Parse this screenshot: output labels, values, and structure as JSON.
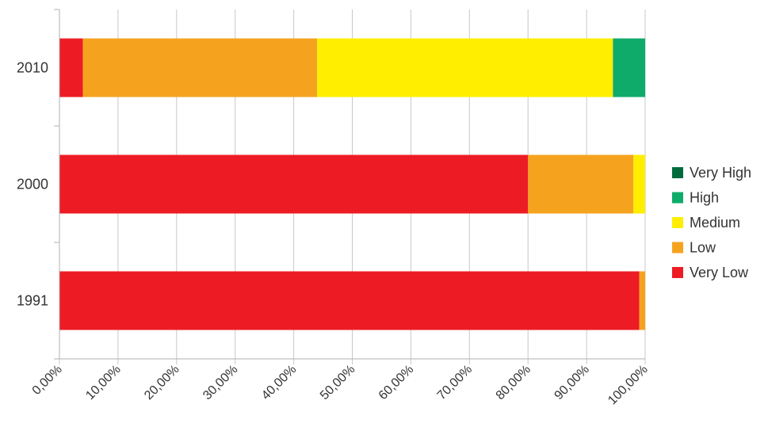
{
  "chart_data": {
    "type": "bar",
    "orientation": "horizontal",
    "stacked": "percent",
    "categories": [
      "2010",
      "2000",
      "1991"
    ],
    "series": [
      {
        "name": "Very Low",
        "color": "#ed1c24",
        "values": [
          4.0,
          80.0,
          99.0
        ]
      },
      {
        "name": "Low",
        "color": "#f5a31f",
        "values": [
          40.0,
          18.0,
          1.0
        ]
      },
      {
        "name": "Medium",
        "color": "#ffee00",
        "values": [
          50.5,
          2.0,
          0.0
        ]
      },
      {
        "name": "High",
        "color": "#0fab6b",
        "values": [
          5.5,
          0.0,
          0.0
        ]
      },
      {
        "name": "Very High",
        "color": "#006b3c",
        "values": [
          0.0,
          0.0,
          0.0
        ]
      }
    ],
    "legend_order": [
      "Very High",
      "High",
      "Medium",
      "Low",
      "Very Low"
    ],
    "xlim": [
      0,
      100
    ],
    "x_ticks": [
      "0,00%",
      "10,00%",
      "20,00%",
      "30,00%",
      "40,00%",
      "50,00%",
      "60,00%",
      "70,00%",
      "80,00%",
      "90,00%",
      "100,00%"
    ],
    "title": "",
    "xlabel": "",
    "ylabel": "",
    "grid": "vertical",
    "legend_position": "right"
  }
}
